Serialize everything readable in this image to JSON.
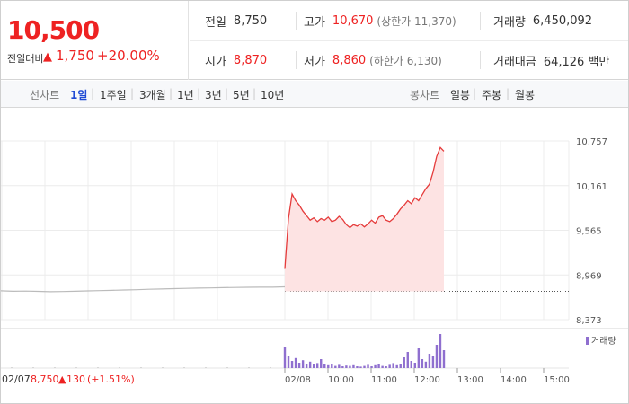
{
  "quote": {
    "price": "10,500",
    "change_label": "전일대비",
    "change_arrow": "▲",
    "change_value": "1,750",
    "change_rate": "+20.00%"
  },
  "stats": {
    "prev_close_label": "전일",
    "prev_close": "8,750",
    "high_label": "고가",
    "high": "10,670",
    "upper_limit": "(상한가 11,370)",
    "volume_label": "거래량",
    "volume": "6,450,092",
    "open_label": "시가",
    "open": "8,870",
    "low_label": "저가",
    "low": "8,860",
    "lower_limit": "(하한가 6,130)",
    "value_label": "거래대금",
    "value": "64,126 백만"
  },
  "toolbar": {
    "line_label": "선차트",
    "ranges": [
      "1일",
      "1주일",
      "3개월",
      "1년",
      "3년",
      "5년",
      "10년"
    ],
    "selected_range": "1일",
    "candle_label": "봉차트",
    "candles": [
      "일봉",
      "주봉",
      "월봉"
    ]
  },
  "chart_data": {
    "type": "line",
    "yticks": [
      "10,757",
      "10,161",
      "9,565",
      "8,969",
      "8,373"
    ],
    "ylim": [
      8373,
      10757
    ],
    "prev_close": 8750,
    "prev_day": {
      "date": "02/07",
      "close": "8,750",
      "arrow": "▲",
      "change": "130",
      "rate": "(+1.51%)"
    },
    "xticks": [
      "02/08",
      "10:00",
      "11:00",
      "12:00",
      "13:00",
      "14:00",
      "15:00"
    ],
    "prev_series": [
      8758,
      8752,
      8754,
      8750,
      8746,
      8748,
      8752,
      8756,
      8760,
      8764,
      8768,
      8772,
      8778,
      8782,
      8786,
      8790,
      8794,
      8796,
      8800,
      8802,
      8804,
      8806,
      8806,
      8810
    ],
    "today_series": [
      9050,
      9720,
      10050,
      9960,
      9900,
      9820,
      9760,
      9700,
      9730,
      9680,
      9720,
      9700,
      9740,
      9680,
      9700,
      9750,
      9710,
      9640,
      9600,
      9640,
      9620,
      9650,
      9610,
      9650,
      9700,
      9660,
      9740,
      9760,
      9700,
      9680,
      9720,
      9780,
      9850,
      9900,
      9960,
      9920,
      10000,
      9960,
      10040,
      10120,
      10180,
      10340,
      10550,
      10670,
      10620
    ],
    "volume_label": "거래량",
    "volume": [
      60,
      35,
      20,
      28,
      15,
      22,
      12,
      18,
      10,
      14,
      25,
      12,
      8,
      10,
      6,
      9,
      5,
      7,
      6,
      8,
      5,
      4,
      6,
      9,
      5,
      8,
      12,
      6,
      5,
      9,
      14,
      8,
      10,
      30,
      45,
      20,
      15,
      55,
      25,
      18,
      40,
      35,
      65,
      95,
      50
    ]
  }
}
